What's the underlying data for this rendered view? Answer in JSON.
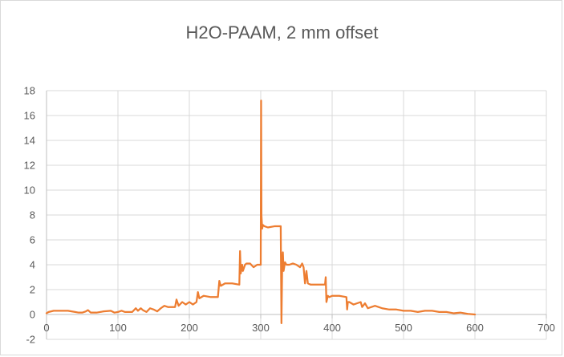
{
  "chart_data": {
    "type": "line",
    "title": "H2O-PAAM, 2 mm offset",
    "xlabel": "",
    "ylabel": "",
    "xlim": [
      0,
      700
    ],
    "ylim": [
      -2,
      18
    ],
    "x_ticks": [
      0,
      100,
      200,
      300,
      400,
      500,
      600,
      700
    ],
    "y_ticks": [
      -2,
      0,
      2,
      4,
      6,
      8,
      10,
      12,
      14,
      16,
      18
    ],
    "grid": true,
    "legend": "none",
    "series": [
      {
        "color": "#ed7d31",
        "x": [
          0,
          3,
          10,
          20,
          30,
          35,
          40,
          45,
          50,
          55,
          58,
          62,
          70,
          80,
          90,
          95,
          100,
          105,
          110,
          120,
          125,
          128,
          132,
          135,
          140,
          145,
          150,
          155,
          160,
          165,
          170,
          180,
          182,
          185,
          190,
          195,
          200,
          205,
          210,
          212,
          214,
          220,
          230,
          240,
          242,
          244,
          250,
          260,
          270,
          271,
          272,
          274,
          275,
          278,
          280,
          285,
          290,
          295,
          300,
          300.5,
          301,
          302,
          303,
          305,
          310,
          320,
          328,
          329,
          330,
          331,
          332,
          334,
          336,
          340,
          345,
          350,
          355,
          358,
          360,
          362,
          364,
          366,
          370,
          380,
          390,
          391,
          392,
          394,
          396,
          400,
          410,
          420,
          421,
          422,
          424,
          430,
          440,
          442,
          446,
          450,
          455,
          460,
          470,
          480,
          490,
          500,
          510,
          520,
          530,
          540,
          550,
          560,
          570,
          580,
          590,
          600
        ],
        "y": [
          0.1,
          0.2,
          0.3,
          0.3,
          0.3,
          0.25,
          0.2,
          0.15,
          0.15,
          0.25,
          0.35,
          0.15,
          0.15,
          0.25,
          0.3,
          0.15,
          0.2,
          0.3,
          0.2,
          0.2,
          0.5,
          0.3,
          0.5,
          0.35,
          0.2,
          0.5,
          0.4,
          0.25,
          0.5,
          0.7,
          0.6,
          0.6,
          1.2,
          0.7,
          1.0,
          0.8,
          1.0,
          0.8,
          1.0,
          1.8,
          1.3,
          1.5,
          1.4,
          1.4,
          2.7,
          2.3,
          2.5,
          2.5,
          2.4,
          5.1,
          3.3,
          4.0,
          3.5,
          4.0,
          4.1,
          4.1,
          3.8,
          4.0,
          4.0,
          17.2,
          8.0,
          6.9,
          7.2,
          7.1,
          7.0,
          7.1,
          7.1,
          -0.7,
          3.8,
          5.0,
          3.5,
          4.2,
          4.0,
          4.0,
          4.1,
          4.0,
          3.8,
          4.1,
          3.8,
          2.5,
          3.5,
          2.5,
          2.4,
          2.4,
          2.4,
          3.0,
          1.0,
          1.5,
          1.4,
          1.5,
          1.5,
          1.4,
          0.4,
          1.0,
          1.0,
          0.8,
          1.0,
          0.6,
          0.9,
          0.5,
          0.6,
          0.7,
          0.5,
          0.4,
          0.4,
          0.3,
          0.3,
          0.2,
          0.3,
          0.3,
          0.2,
          0.2,
          0.1,
          0.15,
          0.05,
          0.0
        ]
      }
    ]
  }
}
